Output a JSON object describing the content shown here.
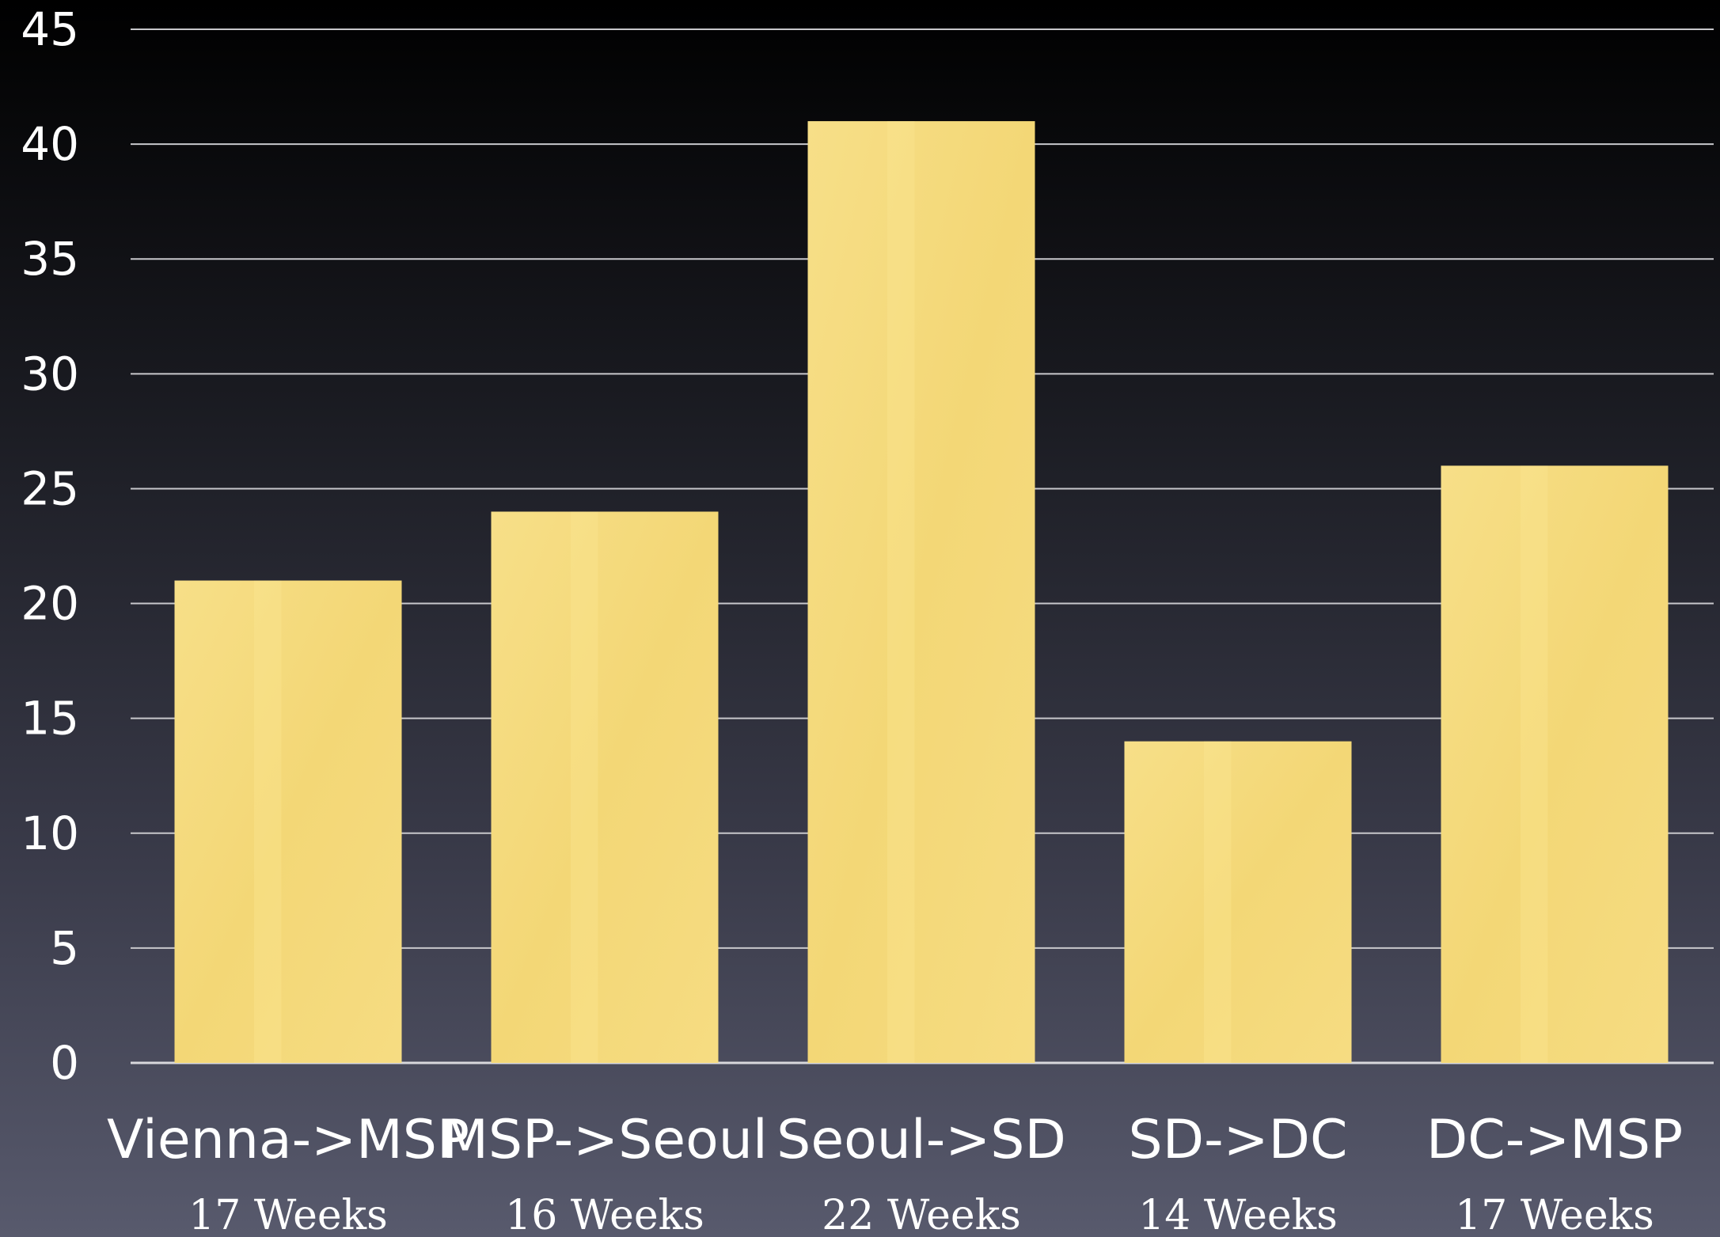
{
  "chart_data": {
    "type": "bar",
    "categories": [
      "Vienna->MSP",
      "MSP->Seoul",
      "Seoul->SD",
      "SD->DC",
      "DC->MSP"
    ],
    "subcategories": [
      "17 Weeks",
      "16 Weeks",
      "22 Weeks",
      "14 Weeks",
      "17 Weeks"
    ],
    "values": [
      21,
      24,
      41,
      14,
      26
    ],
    "yticks": [
      "0",
      "5",
      "10",
      "15",
      "20",
      "25",
      "30",
      "35",
      "40",
      "45"
    ],
    "ylim": [
      0,
      45
    ],
    "grid": true,
    "legend": "none",
    "title": "",
    "xlabel": "",
    "ylabel": "",
    "colors": {
      "bar": "#f5dc80",
      "bar_highlight": "#fbe794",
      "text": "#ffffff",
      "grid": "#c8c8cc"
    }
  }
}
